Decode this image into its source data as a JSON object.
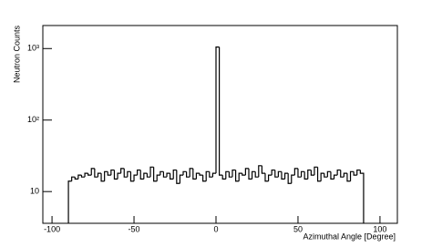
{
  "chart_data": {
    "type": "histogram",
    "xlabel": "Azimuthal Angle [Degree]",
    "ylabel": "Neutron Counts",
    "log_y": true,
    "color": "#000000",
    "bins": [
      -90,
      -88,
      -86,
      -84,
      -82,
      -80,
      -78,
      -76,
      -74,
      -72,
      -70,
      -68,
      -66,
      -64,
      -62,
      -60,
      -58,
      -56,
      -54,
      -52,
      -50,
      -48,
      -46,
      -44,
      -42,
      -40,
      -38,
      -36,
      -34,
      -32,
      -30,
      -28,
      -26,
      -24,
      -22,
      -20,
      -18,
      -16,
      -14,
      -12,
      -10,
      -8,
      -6,
      -4,
      -2,
      0,
      2,
      4,
      6,
      8,
      10,
      12,
      14,
      16,
      18,
      20,
      22,
      24,
      26,
      28,
      30,
      32,
      34,
      36,
      38,
      40,
      42,
      44,
      46,
      48,
      50,
      52,
      54,
      56,
      58,
      60,
      62,
      64,
      66,
      68,
      70,
      72,
      74,
      76,
      78,
      80,
      82,
      84,
      86,
      88,
      90
    ],
    "values": [
      14,
      16,
      15,
      17,
      16,
      18,
      17,
      21,
      16,
      18,
      14,
      19,
      17,
      20,
      15,
      18,
      21,
      16,
      19,
      14,
      17,
      20,
      15,
      18,
      16,
      22,
      14,
      17,
      19,
      16,
      18,
      15,
      20,
      13,
      17,
      19,
      16,
      21,
      15,
      18,
      17,
      14,
      19,
      16,
      18,
      1050,
      17,
      15,
      19,
      16,
      20,
      14,
      18,
      17,
      21,
      15,
      19,
      16,
      23,
      18,
      14,
      17,
      20,
      16,
      19,
      15,
      18,
      13,
      17,
      21,
      16,
      19,
      15,
      20,
      17,
      22,
      14,
      18,
      16,
      19,
      15,
      17,
      20,
      16,
      18,
      14,
      19,
      17,
      20,
      18
    ],
    "xlim": [
      -105.6,
      110.6
    ],
    "ylim": [
      3.6,
      2100
    ],
    "xticks": [
      -100,
      -50,
      0,
      50,
      100
    ],
    "yticks": [
      10,
      {
        "value": 100,
        "label": "10²"
      },
      {
        "value": 1000,
        "label": "10³"
      }
    ]
  }
}
